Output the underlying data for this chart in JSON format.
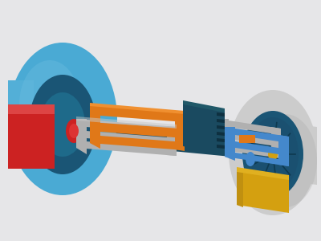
{
  "background_color": "#e6e6e8",
  "fig_width": 4.0,
  "fig_height": 3.0,
  "dpi": 100,
  "colors": {
    "blue_tire": "#4aaad4",
    "blue_dark": "#1a5575",
    "blue_light": "#6bbce0",
    "gray_wheel": "#cccccc",
    "gray_frame": "#b0b0b0",
    "orange": "#e07818",
    "red": "#cc2222",
    "yellow": "#d4a010",
    "teal_dark": "#1a4a60",
    "blue_frame": "#4488cc",
    "white_ish": "#e0e0e0"
  }
}
